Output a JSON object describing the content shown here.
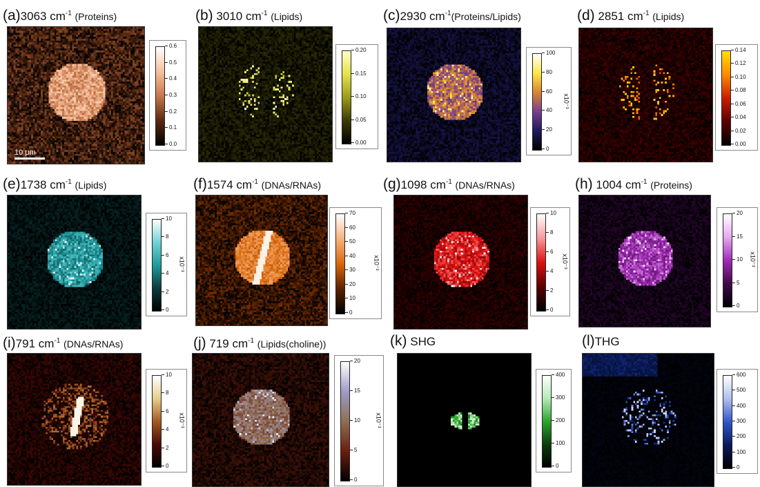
{
  "panels": [
    {
      "id": "a",
      "letter": "(a)",
      "wavenumber": "3063 cm",
      "sup": "-1",
      "tag": "(Proteins)",
      "ticks": [
        "0.6",
        "0.5",
        "0.4",
        "0.3",
        "0.2",
        "0.1",
        "0.0"
      ],
      "multiplier": "",
      "scalebar": "10 μm",
      "colors": [
        "#000000",
        "#5a2a12",
        "#c7774b",
        "#f6c29e",
        "#ffffff"
      ]
    },
    {
      "id": "b",
      "letter": "(b)",
      "wavenumber": "3010 cm",
      "sup": "-1",
      "tag": "(Lipids)",
      "ticks": [
        "0.20",
        "0.15",
        "0.10",
        "0.05",
        "0.00"
      ],
      "multiplier": "",
      "colors": [
        "#000000",
        "#3b3b08",
        "#9c9b1a",
        "#e5e24a",
        "#ffffc8"
      ]
    },
    {
      "id": "c",
      "letter": "(c)",
      "wavenumber": "2930 cm",
      "sup": "-1",
      "tag": "(Proteins/Lipids)",
      "ticks": [
        "100",
        "80",
        "60",
        "40",
        "20",
        "0"
      ],
      "multiplier": "x10⁻³",
      "colors": [
        "#000000",
        "#1d1a5e",
        "#7a3f8f",
        "#d9852e",
        "#ffe84a",
        "#ffffff"
      ]
    },
    {
      "id": "d",
      "letter": "(d)",
      "wavenumber": "2851 cm",
      "sup": "-1",
      "tag": "(Lipids)",
      "ticks": [
        "0.14",
        "0.12",
        "0.10",
        "0.08",
        "0.06",
        "0.04",
        "0.02",
        "0.00"
      ],
      "multiplier": "",
      "colors": [
        "#000000",
        "#5a0000",
        "#c81e00",
        "#ff8a00",
        "#ffe000"
      ]
    },
    {
      "id": "e",
      "letter": "(e)",
      "wavenumber": "1738 cm",
      "sup": "-1",
      "tag": "(Lipids)",
      "ticks": [
        "10",
        "8",
        "6",
        "4",
        "2",
        "0"
      ],
      "multiplier": "x10⁻³",
      "colors": [
        "#000000",
        "#0b3b3d",
        "#1f9a9e",
        "#6fd3d6",
        "#ffffff"
      ]
    },
    {
      "id": "f",
      "letter": "(f)",
      "wavenumber": "1574 cm",
      "sup": "-1",
      "tag": "(DNAs/RNAs)",
      "ticks": [
        "70",
        "60",
        "50",
        "40",
        "30",
        "20",
        "10",
        "0"
      ],
      "multiplier": "x10⁻³",
      "colors": [
        "#000000",
        "#5a2200",
        "#d9680e",
        "#f7b27a",
        "#ffffff"
      ]
    },
    {
      "id": "g",
      "letter": "(g)",
      "wavenumber": "1098 cm",
      "sup": "-1",
      "tag": "(DNAs/RNAs)",
      "ticks": [
        "10",
        "8",
        "6",
        "4",
        "2",
        "0"
      ],
      "multiplier": "x10⁻³",
      "colors": [
        "#000000",
        "#5c0000",
        "#e00f0f",
        "#f69a9a",
        "#ffffff"
      ]
    },
    {
      "id": "h",
      "letter": "(h)",
      "wavenumber": "1004 cm",
      "sup": "-1",
      "tag": "(Proteins)",
      "ticks": [
        "20",
        "15",
        "10",
        "5",
        "0"
      ],
      "multiplier": "x10⁻³",
      "colors": [
        "#000000",
        "#3f0a4a",
        "#a12bb5",
        "#e7a8ee",
        "#ffffff"
      ]
    },
    {
      "id": "i",
      "letter": "(i)",
      "wavenumber": "791 cm",
      "sup": "-1",
      "tag": "(DNAs/RNAs)",
      "ticks": [
        "10",
        "8",
        "6",
        "4",
        "2",
        "0"
      ],
      "multiplier": "x10⁻³",
      "colors": [
        "#000000",
        "#4a0a05",
        "#a55a20",
        "#e6cf8c",
        "#ffffff"
      ]
    },
    {
      "id": "j",
      "letter": "(j)",
      "wavenumber": "719 cm",
      "sup": "-1",
      "tag": "(Lipids(choline))",
      "ticks": [
        "20",
        "15",
        "10",
        "5",
        "0"
      ],
      "multiplier": "x10⁻³",
      "colors": [
        "#000000",
        "#6b1e0e",
        "#8f6f55",
        "#9f9bc7",
        "#ffffff"
      ]
    },
    {
      "id": "k",
      "letter": "(k)",
      "wavenumber": "SHG",
      "sup": "",
      "tag": "",
      "ticks": [
        "400",
        "300",
        "200",
        "100",
        "0"
      ],
      "multiplier": "",
      "colors": [
        "#000000",
        "#0b3d0b",
        "#2da52d",
        "#b6eab6",
        "#ffffff"
      ]
    },
    {
      "id": "l",
      "letter": "(l)",
      "wavenumber": "THG",
      "sup": "",
      "tag": "",
      "ticks": [
        "600",
        "500",
        "400",
        "300",
        "200",
        "100",
        "0"
      ],
      "multiplier": "",
      "colors": [
        "#000000",
        "#0a1a5a",
        "#2f57c7",
        "#aebfee",
        "#ffffff"
      ]
    }
  ]
}
